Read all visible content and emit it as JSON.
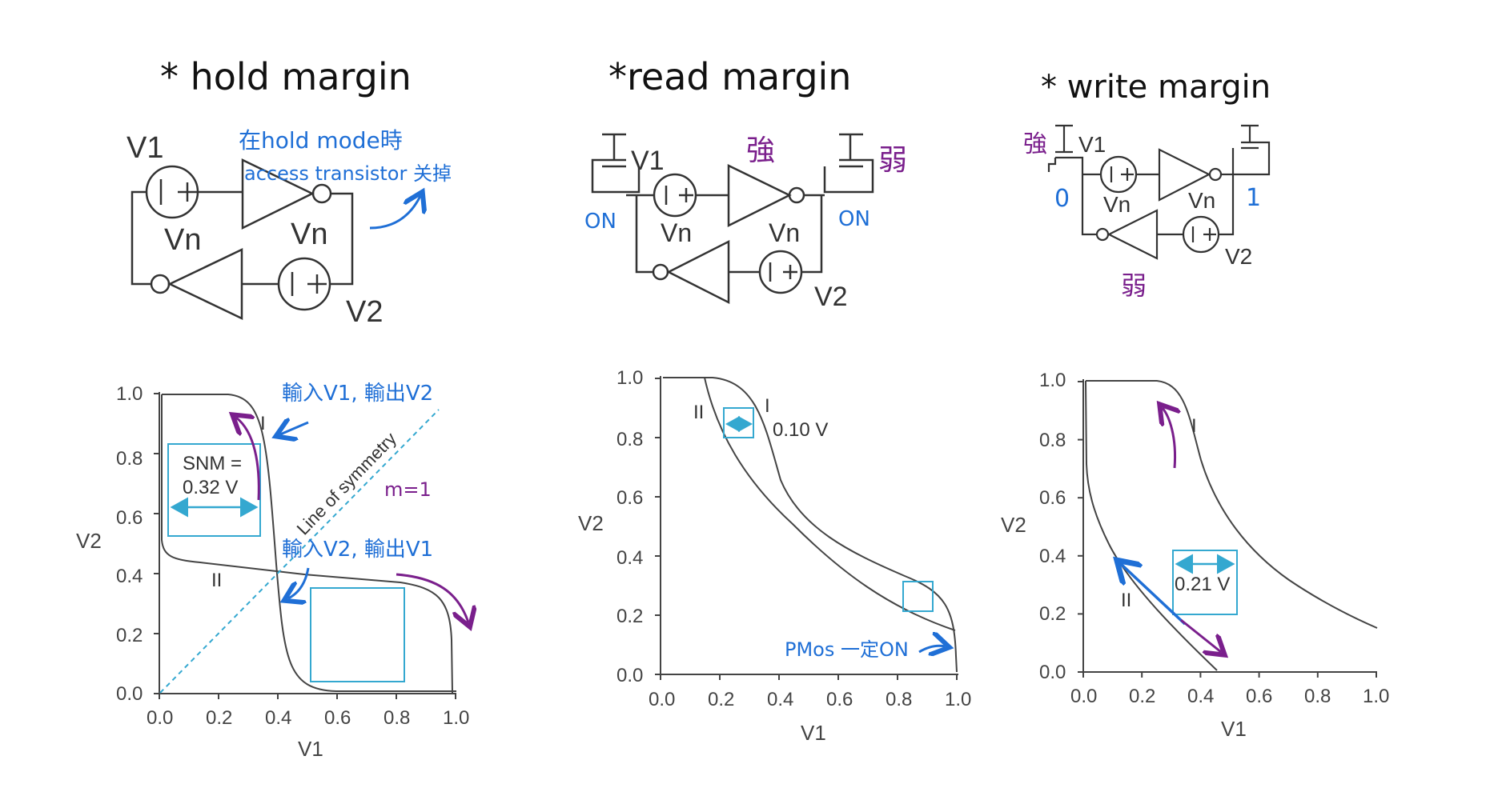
{
  "colors": {
    "ink": "#222222",
    "blue": "#1f6fd6",
    "purple": "#7a1f8c",
    "cyan": "#34a8d0",
    "curve": "#444444"
  },
  "panels": [
    {
      "title": "* hold margin",
      "circuit": {
        "v1": "V1",
        "v2": "V2",
        "vn_left": "Vn",
        "vn_right": "Vn",
        "note_line1": "在hold mode時",
        "note_line2": "access transistor 关掉"
      },
      "chart": {
        "curve_labels": [
          "I",
          "II"
        ],
        "ticks_x": [
          "0.0",
          "0.2",
          "0.4",
          "0.6",
          "0.8",
          "1.0"
        ],
        "ticks_y": [
          "0.0",
          "0.2",
          "0.4",
          "0.6",
          "0.8",
          "1.0"
        ],
        "xlabel": "V1",
        "ylabel": "V2",
        "snm_line1": "SNM =",
        "snm_line2": "0.32 V",
        "symmetry": "Line of symmetry",
        "note_in_v1": "輸入V1, 輸出V2",
        "note_in_v2": "輸入V2, 輸出V1",
        "note_m": "m=1"
      }
    },
    {
      "title": "*read margin",
      "circuit": {
        "v1": "V1",
        "v2": "V2",
        "vn_left": "Vn",
        "vn_right": "Vn",
        "on_left": "ON",
        "on_right": "ON",
        "strong": "強",
        "weak": "弱"
      },
      "chart": {
        "curve_labels": [
          "I",
          "II"
        ],
        "ticks_x": [
          "0.0",
          "0.2",
          "0.4",
          "0.6",
          "0.8",
          "1.0"
        ],
        "ticks_y": [
          "0.0",
          "0.2",
          "0.4",
          "0.6",
          "0.8",
          "1.0"
        ],
        "xlabel": "V1",
        "ylabel": "V2",
        "margin": "0.10 V",
        "note_pmos": "PMos 一定ON"
      }
    },
    {
      "title": "* write margin",
      "circuit": {
        "v1": "V1",
        "v2": "V2",
        "vn_left": "Vn",
        "vn_right": "Vn",
        "strong": "強",
        "weak": "弱",
        "zero": "0",
        "one": "1"
      },
      "chart": {
        "curve_labels": [
          "I",
          "II"
        ],
        "ticks_x": [
          "0.0",
          "0.2",
          "0.4",
          "0.6",
          "0.8",
          "1.0"
        ],
        "ticks_y": [
          "0.0",
          "0.2",
          "0.4",
          "0.6",
          "0.8",
          "1.0"
        ],
        "xlabel": "V1",
        "ylabel": "V2",
        "margin": "0.21 V"
      }
    }
  ]
}
